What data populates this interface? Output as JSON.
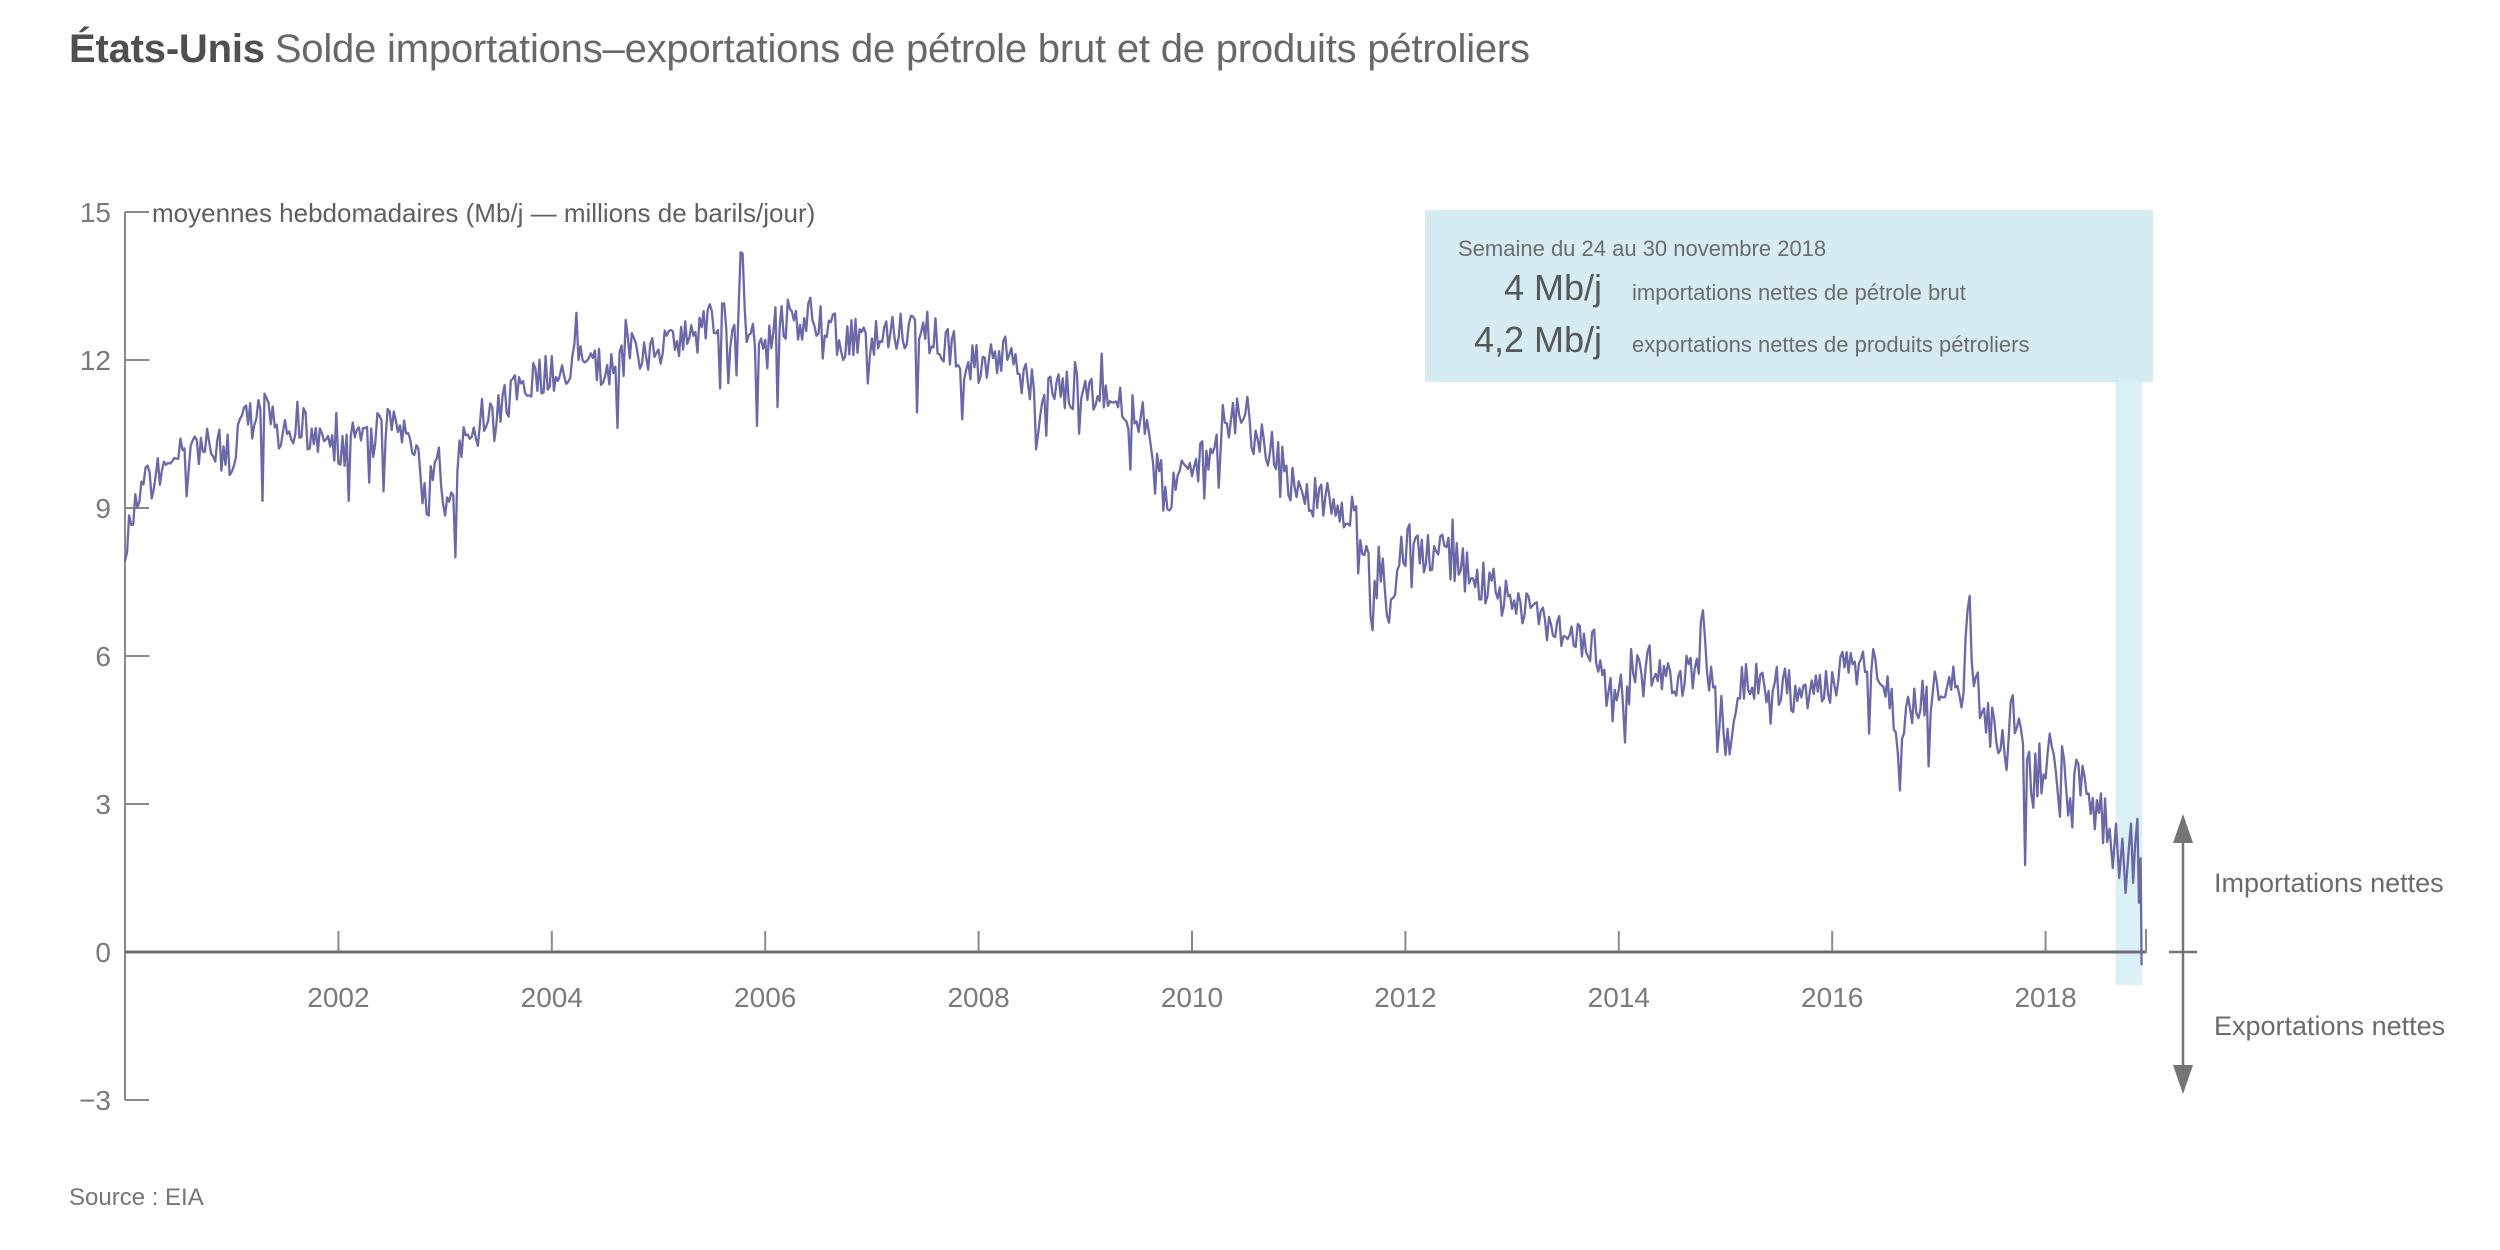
{
  "header": {
    "title_bold": "États-Unis",
    "title_rest": "Solde importations–exportations de pétrole brut et de produits pétroliers"
  },
  "footer": {
    "source_label": "Source : EIA"
  },
  "colors": {
    "line": "#6a69a8",
    "callout_bg": "#d6ecf2",
    "highlight_band": "#dcf0f7",
    "axis": "#8a8a8a",
    "zero_line": "#6e6e6e",
    "text_gray": "#6b6b6b",
    "title_bold": "#4f4f4f"
  },
  "chart_data": {
    "type": "line",
    "title": "États-Unis — Solde importations–exportations de pétrole brut et de produits pétroliers",
    "subtitle": "moyennes hebdomadaires (Mb/j — millions de barils/jour)",
    "xlabel": "",
    "ylabel": "Mb/j",
    "xlim": [
      2000,
      2018.95
    ],
    "ylim": [
      -3,
      15
    ],
    "x_ticks": [
      2002,
      2004,
      2006,
      2008,
      2010,
      2012,
      2014,
      2016,
      2018
    ],
    "y_ticks": [
      15,
      12,
      9,
      6,
      3,
      0,
      -3
    ],
    "grid": false,
    "legend_position": "none",
    "direction_labels": {
      "above": "Importations nettes",
      "below": "Exportations nettes"
    },
    "annotation": {
      "heading": "Semaine du 24 au 30 novembre 2018",
      "bg": "#d6ecf2",
      "rows": [
        {
          "value": "4 Mb/j",
          "label": "importations nettes de pétrole brut"
        },
        {
          "value": "4,2 Mb/j",
          "label": "exportations nettes de produits pétroliers"
        }
      ]
    },
    "highlight_band": {
      "x_start": 2018.655,
      "x_end": 2018.905,
      "color": "#dcf0f7"
    },
    "series": [
      {
        "name": "Solde importations–exportations (Mb/j)",
        "color": "#6a69a8",
        "anchors": [
          [
            2000.0,
            8.2
          ],
          [
            2000.06,
            8.9
          ],
          [
            2000.15,
            9.4
          ],
          [
            2000.3,
            9.7
          ],
          [
            2000.5,
            10.0
          ],
          [
            2000.75,
            10.3
          ],
          [
            2001.0,
            10.1
          ],
          [
            2001.1,
            10.6
          ],
          [
            2001.3,
            11.0
          ],
          [
            2001.45,
            10.6
          ],
          [
            2001.6,
            10.8
          ],
          [
            2001.8,
            10.3
          ],
          [
            2002.0,
            10.2
          ],
          [
            2002.2,
            10.4
          ],
          [
            2002.4,
            10.5
          ],
          [
            2002.55,
            10.9
          ],
          [
            2002.75,
            9.9
          ],
          [
            2002.83,
            8.9
          ],
          [
            2002.9,
            10.3
          ],
          [
            2003.03,
            8.7
          ],
          [
            2003.12,
            10.0
          ],
          [
            2003.25,
            10.5
          ],
          [
            2003.5,
            11.0
          ],
          [
            2003.75,
            11.4
          ],
          [
            2004.0,
            11.8
          ],
          [
            2004.25,
            12.0
          ],
          [
            2004.5,
            11.8
          ],
          [
            2004.75,
            12.1
          ],
          [
            2005.0,
            12.2
          ],
          [
            2005.25,
            12.5
          ],
          [
            2005.5,
            12.7
          ],
          [
            2005.74,
            12.7
          ],
          [
            2005.78,
            14.2
          ],
          [
            2005.83,
            12.5
          ],
          [
            2006.0,
            12.6
          ],
          [
            2006.25,
            12.7
          ],
          [
            2006.5,
            12.9
          ],
          [
            2006.75,
            12.4
          ],
          [
            2007.0,
            12.4
          ],
          [
            2007.25,
            12.7
          ],
          [
            2007.5,
            12.6
          ],
          [
            2007.75,
            12.2
          ],
          [
            2008.0,
            11.9
          ],
          [
            2008.25,
            12.1
          ],
          [
            2008.5,
            11.5
          ],
          [
            2008.55,
            10.3
          ],
          [
            2008.62,
            11.3
          ],
          [
            2008.8,
            11.4
          ],
          [
            2009.0,
            11.3
          ],
          [
            2009.25,
            11.2
          ],
          [
            2009.5,
            10.9
          ],
          [
            2009.73,
            9.9
          ],
          [
            2009.78,
            8.3
          ],
          [
            2009.83,
            9.8
          ],
          [
            2010.0,
            9.7
          ],
          [
            2010.2,
            10.2
          ],
          [
            2010.4,
            10.9
          ],
          [
            2010.45,
            11.2
          ],
          [
            2010.6,
            10.4
          ],
          [
            2010.75,
            10.1
          ],
          [
            2011.0,
            9.3
          ],
          [
            2011.25,
            9.1
          ],
          [
            2011.5,
            8.9
          ],
          [
            2011.65,
            8.2
          ],
          [
            2011.68,
            6.6
          ],
          [
            2011.75,
            8.0
          ],
          [
            2011.85,
            6.9
          ],
          [
            2011.95,
            8.3
          ],
          [
            2012.1,
            8.2
          ],
          [
            2012.3,
            8.0
          ],
          [
            2012.5,
            7.9
          ],
          [
            2012.75,
            7.5
          ],
          [
            2013.0,
            7.0
          ],
          [
            2013.25,
            6.8
          ],
          [
            2013.5,
            6.5
          ],
          [
            2013.75,
            6.3
          ],
          [
            2013.94,
            5.0
          ],
          [
            2014.0,
            5.7
          ],
          [
            2014.05,
            4.6
          ],
          [
            2014.12,
            5.8
          ],
          [
            2014.25,
            5.9
          ],
          [
            2014.5,
            5.6
          ],
          [
            2014.75,
            5.7
          ],
          [
            2014.79,
            6.9
          ],
          [
            2014.83,
            5.7
          ],
          [
            2014.98,
            4.7
          ],
          [
            2015.02,
            4.1
          ],
          [
            2015.1,
            5.3
          ],
          [
            2015.25,
            5.5
          ],
          [
            2015.5,
            5.4
          ],
          [
            2015.75,
            5.2
          ],
          [
            2016.0,
            5.5
          ],
          [
            2016.25,
            5.9
          ],
          [
            2016.45,
            5.8
          ],
          [
            2016.58,
            4.7
          ],
          [
            2016.63,
            3.6
          ],
          [
            2016.7,
            5.0
          ],
          [
            2016.85,
            5.2
          ],
          [
            2017.0,
            5.4
          ],
          [
            2017.22,
            5.4
          ],
          [
            2017.27,
            6.6
          ],
          [
            2017.34,
            5.1
          ],
          [
            2017.5,
            4.9
          ],
          [
            2017.75,
            4.3
          ],
          [
            2017.88,
            3.2
          ],
          [
            2017.94,
            3.9
          ],
          [
            2018.05,
            3.6
          ],
          [
            2018.2,
            3.3
          ],
          [
            2018.35,
            3.0
          ],
          [
            2018.5,
            2.7
          ],
          [
            2018.58,
            2.4
          ]
        ],
        "final_weeks": [
          [
            2018.6,
            2.5
          ],
          [
            2018.63,
            1.7
          ],
          [
            2018.66,
            2.6
          ],
          [
            2018.69,
            1.5
          ],
          [
            2018.72,
            2.3
          ],
          [
            2018.75,
            1.2
          ],
          [
            2018.78,
            2.1
          ],
          [
            2018.8,
            2.6
          ],
          [
            2018.82,
            1.4
          ],
          [
            2018.84,
            2.2
          ],
          [
            2018.86,
            2.7
          ],
          [
            2018.875,
            1.0
          ],
          [
            2018.89,
            1.9
          ],
          [
            2018.9,
            -0.25
          ]
        ],
        "texture": {
          "seed": 9,
          "step_weeks": 52,
          "base_amp": 0.45,
          "late_amp": 0.8,
          "late_start": 2017.3,
          "dip_chance": 0.045,
          "spike_chance": 0.015
        }
      }
    ]
  }
}
